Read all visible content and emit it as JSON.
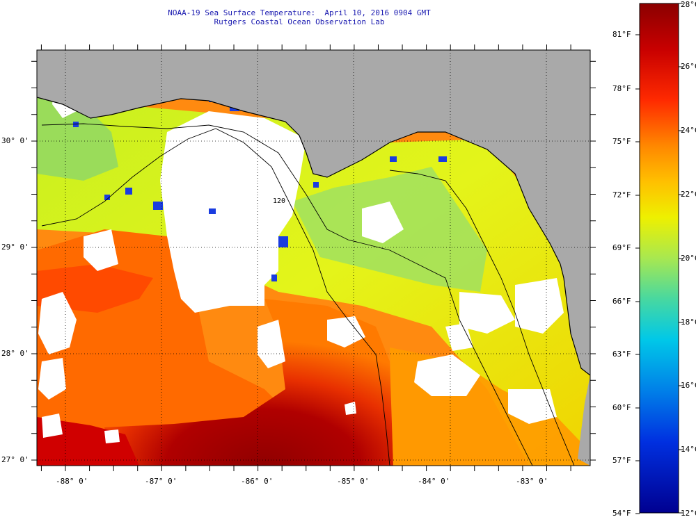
{
  "header": {
    "line1": "NOAA-19 Sea Surface Temperature:  April 10, 2016 0904 GMT",
    "line2": "Rutgers Coastal Ocean Observation Lab"
  },
  "map": {
    "lon_ticks": [
      "-88° 0'",
      "-87° 0'",
      "-86° 0'",
      "-85° 0'",
      "-84° 0'",
      "-83° 0'"
    ],
    "lat_ticks": [
      "30° 0'",
      "29° 0'",
      "28° 0'",
      "27° 0'"
    ],
    "lon_range": [
      -88.3,
      -82.6
    ],
    "lat_range": [
      26.95,
      30.85
    ],
    "land_color": "#a9a9a9",
    "cloud_color": "#ffffff",
    "bathymetry_labels": [
      "120"
    ]
  },
  "colorbar": {
    "celsius_labels": [
      "28°C",
      "26°C",
      "24°C",
      "22°C",
      "20°C",
      "18°C",
      "16°C",
      "14°C",
      "12°C"
    ],
    "fahrenheit_labels": [
      "81°F",
      "78°F",
      "75°F",
      "72°F",
      "69°F",
      "66°F",
      "63°F",
      "60°F",
      "57°F",
      "54°F"
    ],
    "colors": [
      "#8b0000",
      "#d40000",
      "#ff3000",
      "#ff8a00",
      "#ffc800",
      "#eef000",
      "#a8e850",
      "#48d8a0",
      "#00c8e8",
      "#0080e8",
      "#0030e0",
      "#0000a0"
    ]
  }
}
